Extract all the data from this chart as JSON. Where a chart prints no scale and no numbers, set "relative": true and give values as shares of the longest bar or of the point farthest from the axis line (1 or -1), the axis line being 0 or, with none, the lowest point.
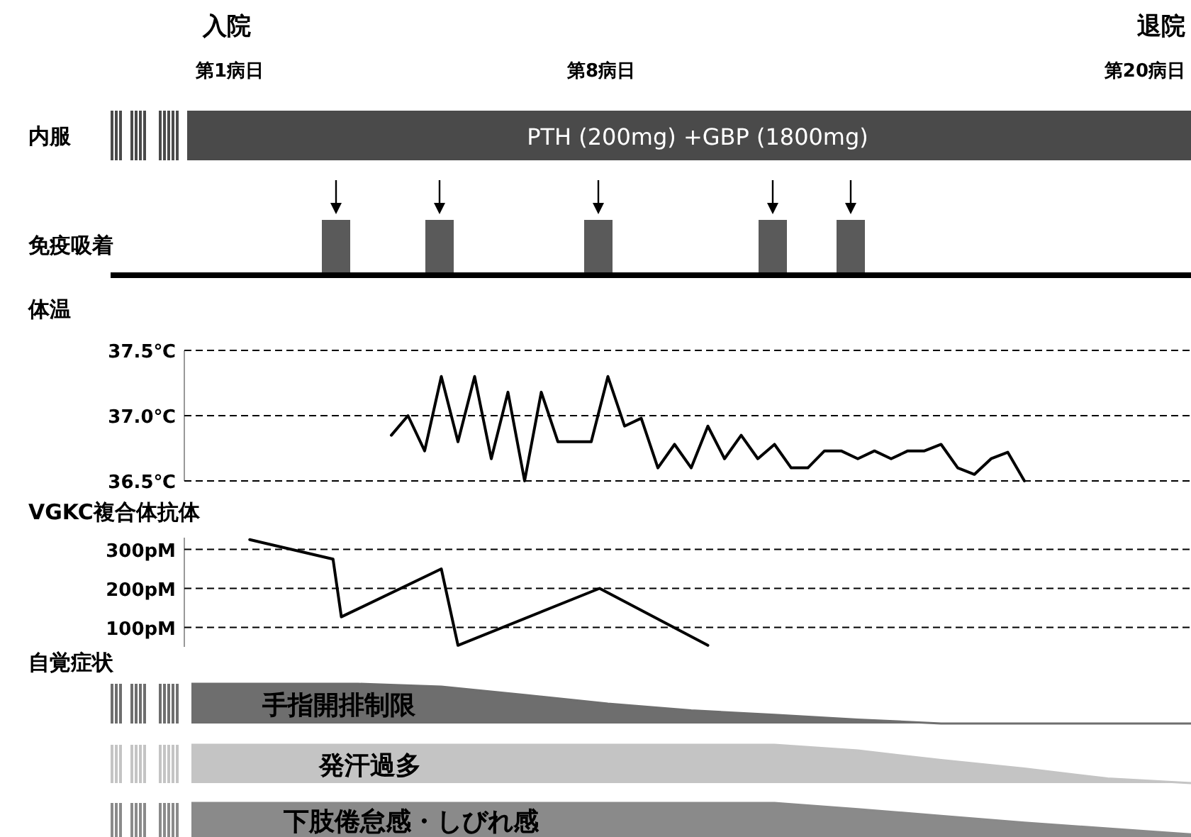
{
  "chart_data": [
    {
      "type": "other",
      "annotations": [
        "入院",
        "第1病日",
        "第8病日",
        "第20病日",
        "退院",
        "内服",
        "PTH (200mg) +GBP (1800mg)",
        "免疫吸着"
      ]
    },
    {
      "type": "line",
      "title": "体温",
      "color": "#000000",
      "grid": "y",
      "tick_labels": "y",
      "ylim": [
        36.5,
        37.5
      ],
      "yticks": [
        {
          "value": 36.5,
          "label": "36.5℃"
        },
        {
          "value": 37.0,
          "label": "37.0℃"
        },
        {
          "value": 37.5,
          "label": "37.5℃"
        }
      ],
      "categories": [
        null,
        null,
        null,
        null,
        null,
        null,
        null,
        null,
        null,
        null,
        null,
        null,
        null,
        null,
        null,
        null,
        null,
        null,
        null,
        null,
        null,
        null,
        null,
        null,
        null,
        null,
        null,
        null,
        null,
        null,
        null,
        null,
        null,
        null,
        null,
        null,
        null,
        null,
        null,
        null,
        null,
        null,
        null,
        null,
        null,
        null,
        null,
        null,
        null,
        null,
        null,
        null,
        null,
        null,
        null,
        null,
        null,
        null,
        null,
        null,
        null
      ],
      "values": [
        null,
        null,
        null,
        null,
        null,
        null,
        null,
        null,
        null,
        null,
        null,
        null,
        36.85,
        37.0,
        36.73,
        37.3,
        36.8,
        37.3,
        36.67,
        37.18,
        36.5,
        37.18,
        36.8,
        36.8,
        36.8,
        37.3,
        36.92,
        36.98,
        36.6,
        36.78,
        36.6,
        36.92,
        36.67,
        36.85,
        36.67,
        36.78,
        36.6,
        36.6,
        36.73,
        36.73,
        36.67,
        36.73,
        36.67,
        36.73,
        36.73,
        36.78,
        36.6,
        36.55,
        36.67,
        36.72,
        36.5,
        null,
        null,
        null,
        null,
        null,
        null,
        null,
        null,
        null,
        null
      ]
    },
    {
      "type": "line",
      "title": "VGKC複合体抗体",
      "color": "#000000",
      "grid": "y",
      "tick_labels": "y",
      "ylim": [
        50,
        330
      ],
      "yticks": [
        {
          "value": 100,
          "label": "100pM"
        },
        {
          "value": 200,
          "label": "200pM"
        },
        {
          "value": 300,
          "label": "300pM"
        }
      ],
      "categories": [
        null,
        null,
        null,
        null,
        null,
        null,
        null,
        null,
        null,
        null,
        null,
        null,
        null,
        null,
        null,
        null,
        null,
        null,
        null,
        null,
        null,
        null,
        null,
        null,
        null,
        null,
        null,
        null,
        null,
        null,
        null,
        null,
        null,
        null,
        null,
        null,
        null,
        null,
        null,
        null,
        null,
        null,
        null,
        null,
        null,
        null,
        null,
        null,
        null,
        null,
        null,
        null,
        null,
        null,
        null,
        null,
        null,
        null,
        null,
        null,
        null,
        null,
        null,
        null,
        null,
        null,
        null,
        null,
        null,
        null,
        null,
        null,
        null,
        null,
        null,
        null,
        null,
        null,
        null,
        null,
        null,
        null,
        null,
        null,
        null,
        null,
        null,
        null,
        null,
        null,
        null,
        null,
        null,
        null,
        null,
        null,
        null,
        null,
        null,
        null,
        null,
        null,
        null,
        null,
        null,
        null,
        null,
        null,
        null,
        null,
        null,
        null,
        null,
        null,
        null,
        null,
        null,
        null,
        null,
        null,
        null
      ],
      "values": [
        null,
        null,
        null,
        null,
        null,
        null,
        null,
        325,
        null,
        null,
        null,
        null,
        null,
        null,
        null,
        null,
        null,
        275,
        127,
        null,
        null,
        null,
        null,
        null,
        null,
        null,
        null,
        null,
        null,
        null,
        250,
        null,
        54,
        null,
        null,
        null,
        null,
        null,
        null,
        null,
        null,
        null,
        null,
        null,
        null,
        null,
        null,
        null,
        null,
        200,
        null,
        null,
        null,
        null,
        null,
        null,
        null,
        null,
        null,
        null,
        null,
        null,
        54,
        null,
        null,
        null,
        null,
        null,
        null,
        null,
        null,
        null,
        null,
        null,
        null,
        null,
        null,
        null,
        null,
        null,
        null,
        null,
        null,
        null,
        null,
        null,
        null,
        null,
        null,
        null,
        null,
        null,
        null,
        null,
        null,
        null,
        null,
        null,
        null,
        null,
        null,
        null,
        null,
        null,
        null,
        null,
        null,
        null,
        null,
        null,
        null,
        null,
        null,
        null,
        null,
        null,
        null,
        null,
        null,
        null,
        null
      ]
    },
    {
      "type": "area",
      "title": "自覚症状",
      "relative": true,
      "categories": [
        null,
        null,
        null,
        null,
        null,
        null,
        null,
        null,
        null,
        null,
        null,
        null,
        null
      ],
      "series": [
        {
          "name": "手指開排制限",
          "color": "#6e6e6e",
          "values": [
            1,
            1,
            1,
            0.93,
            0.72,
            0.5,
            0.33,
            0.22,
            0.1,
            0,
            0,
            0,
            0
          ]
        }
      ]
    },
    {
      "type": "area",
      "relative": true,
      "categories": [
        null,
        null,
        null,
        null,
        null,
        null,
        null,
        null,
        null,
        null,
        null,
        null,
        null
      ],
      "series": [
        {
          "name": "発汗過多",
          "color": "#c4c4c4",
          "values": [
            1,
            1,
            1,
            1,
            1,
            1,
            1,
            1,
            0.85,
            0.6,
            0.38,
            0.12,
            0
          ]
        }
      ]
    },
    {
      "type": "area",
      "relative": true,
      "categories": [
        null,
        null,
        null,
        null,
        null,
        null,
        null,
        null,
        null,
        null,
        null,
        null,
        null
      ],
      "series": [
        {
          "name": "下肢倦怠感・しびれ感",
          "color": "#8a8a8a",
          "values": [
            1,
            1,
            1,
            1,
            1,
            1,
            1,
            1,
            0.82,
            0.62,
            0.42,
            0.25,
            0.08
          ]
        }
      ]
    }
  ]
}
